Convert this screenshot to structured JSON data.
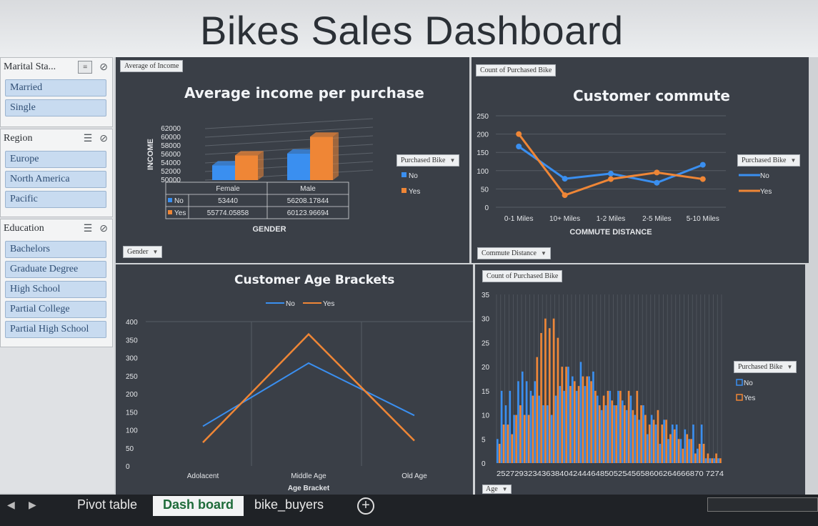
{
  "title": "Bikes Sales Dashboard",
  "colors": {
    "no": "#3a8ff0",
    "yes": "#ef8636",
    "panel": "#3a3f47"
  },
  "slicers": [
    {
      "title": "Marital Sta...",
      "items": [
        "Married",
        "Single"
      ]
    },
    {
      "title": "Region",
      "items": [
        "Europe",
        "North America",
        "Pacific"
      ]
    },
    {
      "title": "Education",
      "items": [
        "Bachelors",
        "Graduate Degree",
        "High School",
        "Partial College",
        "Partial High School"
      ]
    }
  ],
  "field_buttons": {
    "avg_income": "Average of Income",
    "gender": "Gender",
    "count_purchased_1": "Count of Purchased Bike",
    "commute_distance": "Commute Distance",
    "count_purchased_2": "Count of Purchased Bike",
    "age": "Age",
    "purchased_bike": "Purchased Bike"
  },
  "legend": {
    "no": "No",
    "yes": "Yes"
  },
  "tabs": {
    "pivot": "Pivot table",
    "dash": "Dash board",
    "buyers": "bike_buyers",
    "add": "+"
  },
  "chart_data": [
    {
      "type": "bar",
      "title": "Average income per purchase",
      "xlabel": "GENDER",
      "ylabel": "INCOME",
      "categories": [
        "Female",
        "Male"
      ],
      "yticks": [
        "62000",
        "60000",
        "58000",
        "56000",
        "54000",
        "52000",
        "50000"
      ],
      "ylim": [
        50000,
        62000
      ],
      "series": [
        {
          "name": "No",
          "values": [
            53440,
            56208.17844
          ],
          "labels": [
            "53440",
            "56208.17844"
          ]
        },
        {
          "name": "Yes",
          "values": [
            55774.05858,
            60123.96694
          ],
          "labels": [
            "55774.05858",
            "60123.96694"
          ]
        }
      ],
      "legend_title": "Purchased Bike"
    },
    {
      "type": "line",
      "title": "Customer commute",
      "xlabel": "COMMUTE DISTANCE",
      "categories": [
        "0-1 Miles",
        "10+ Miles",
        "1-2 Miles",
        "2-5 Miles",
        "5-10 Miles"
      ],
      "yticks": [
        "250",
        "200",
        "150",
        "100",
        "50",
        "0"
      ],
      "ylim": [
        0,
        250
      ],
      "series": [
        {
          "name": "No",
          "values": [
            166,
            78,
            92,
            67,
            116
          ]
        },
        {
          "name": "Yes",
          "values": [
            200,
            33,
            77,
            95,
            77
          ]
        }
      ],
      "legend_title": "Purchased Bike"
    },
    {
      "type": "line",
      "title": "Customer Age Brackets",
      "xlabel": "Age Bracket",
      "categories": [
        "Adolacent",
        "Middle Age",
        "Old Age"
      ],
      "yticks": [
        "400",
        "350",
        "300",
        "250",
        "200",
        "150",
        "100",
        "50",
        "0"
      ],
      "ylim": [
        0,
        400
      ],
      "series": [
        {
          "name": "No",
          "values": [
            110,
            285,
            140
          ]
        },
        {
          "name": "Yes",
          "values": [
            65,
            365,
            70
          ]
        }
      ]
    },
    {
      "type": "bar",
      "title": "",
      "xlabel": "",
      "yticks": [
        "35",
        "30",
        "25",
        "20",
        "15",
        "10",
        "5",
        "0"
      ],
      "ylim": [
        0,
        35
      ],
      "x_tick_text": "2527293234363840424446485052545658606264666870 7274",
      "categories": [
        25,
        26,
        27,
        28,
        29,
        30,
        31,
        32,
        33,
        34,
        35,
        36,
        37,
        38,
        39,
        40,
        41,
        42,
        43,
        44,
        45,
        46,
        47,
        48,
        49,
        50,
        51,
        52,
        53,
        54,
        55,
        56,
        57,
        58,
        59,
        60,
        61,
        62,
        63,
        64,
        65,
        66,
        67,
        68,
        69,
        70,
        71,
        72,
        73,
        74,
        75,
        76,
        77,
        78
      ],
      "series": [
        {
          "name": "No",
          "values": [
            5,
            15,
            12,
            15,
            10,
            17,
            19,
            17,
            15,
            17,
            14,
            12,
            12,
            10,
            14,
            16,
            15,
            20,
            18,
            15,
            21,
            16,
            18,
            19,
            14,
            11,
            12,
            15,
            12,
            15,
            13,
            11,
            14,
            10,
            9,
            12,
            6,
            10,
            8,
            4,
            9,
            5,
            8,
            8,
            5,
            7,
            5,
            8,
            3,
            8,
            1,
            1,
            1,
            1
          ]
        },
        {
          "name": "Yes",
          "values": [
            4,
            8,
            8,
            6,
            10,
            12,
            10,
            10,
            14,
            22,
            27,
            30,
            28,
            30,
            26,
            20,
            20,
            16,
            17,
            16,
            18,
            18,
            17,
            15,
            12,
            14,
            15,
            13,
            12,
            15,
            12,
            15,
            11,
            15,
            12,
            10,
            8,
            9,
            11,
            8,
            9,
            6,
            7,
            5,
            3,
            6,
            5,
            2,
            4,
            4,
            2,
            1,
            2,
            1
          ]
        }
      ],
      "legend_title": "Purchased Bike"
    }
  ]
}
